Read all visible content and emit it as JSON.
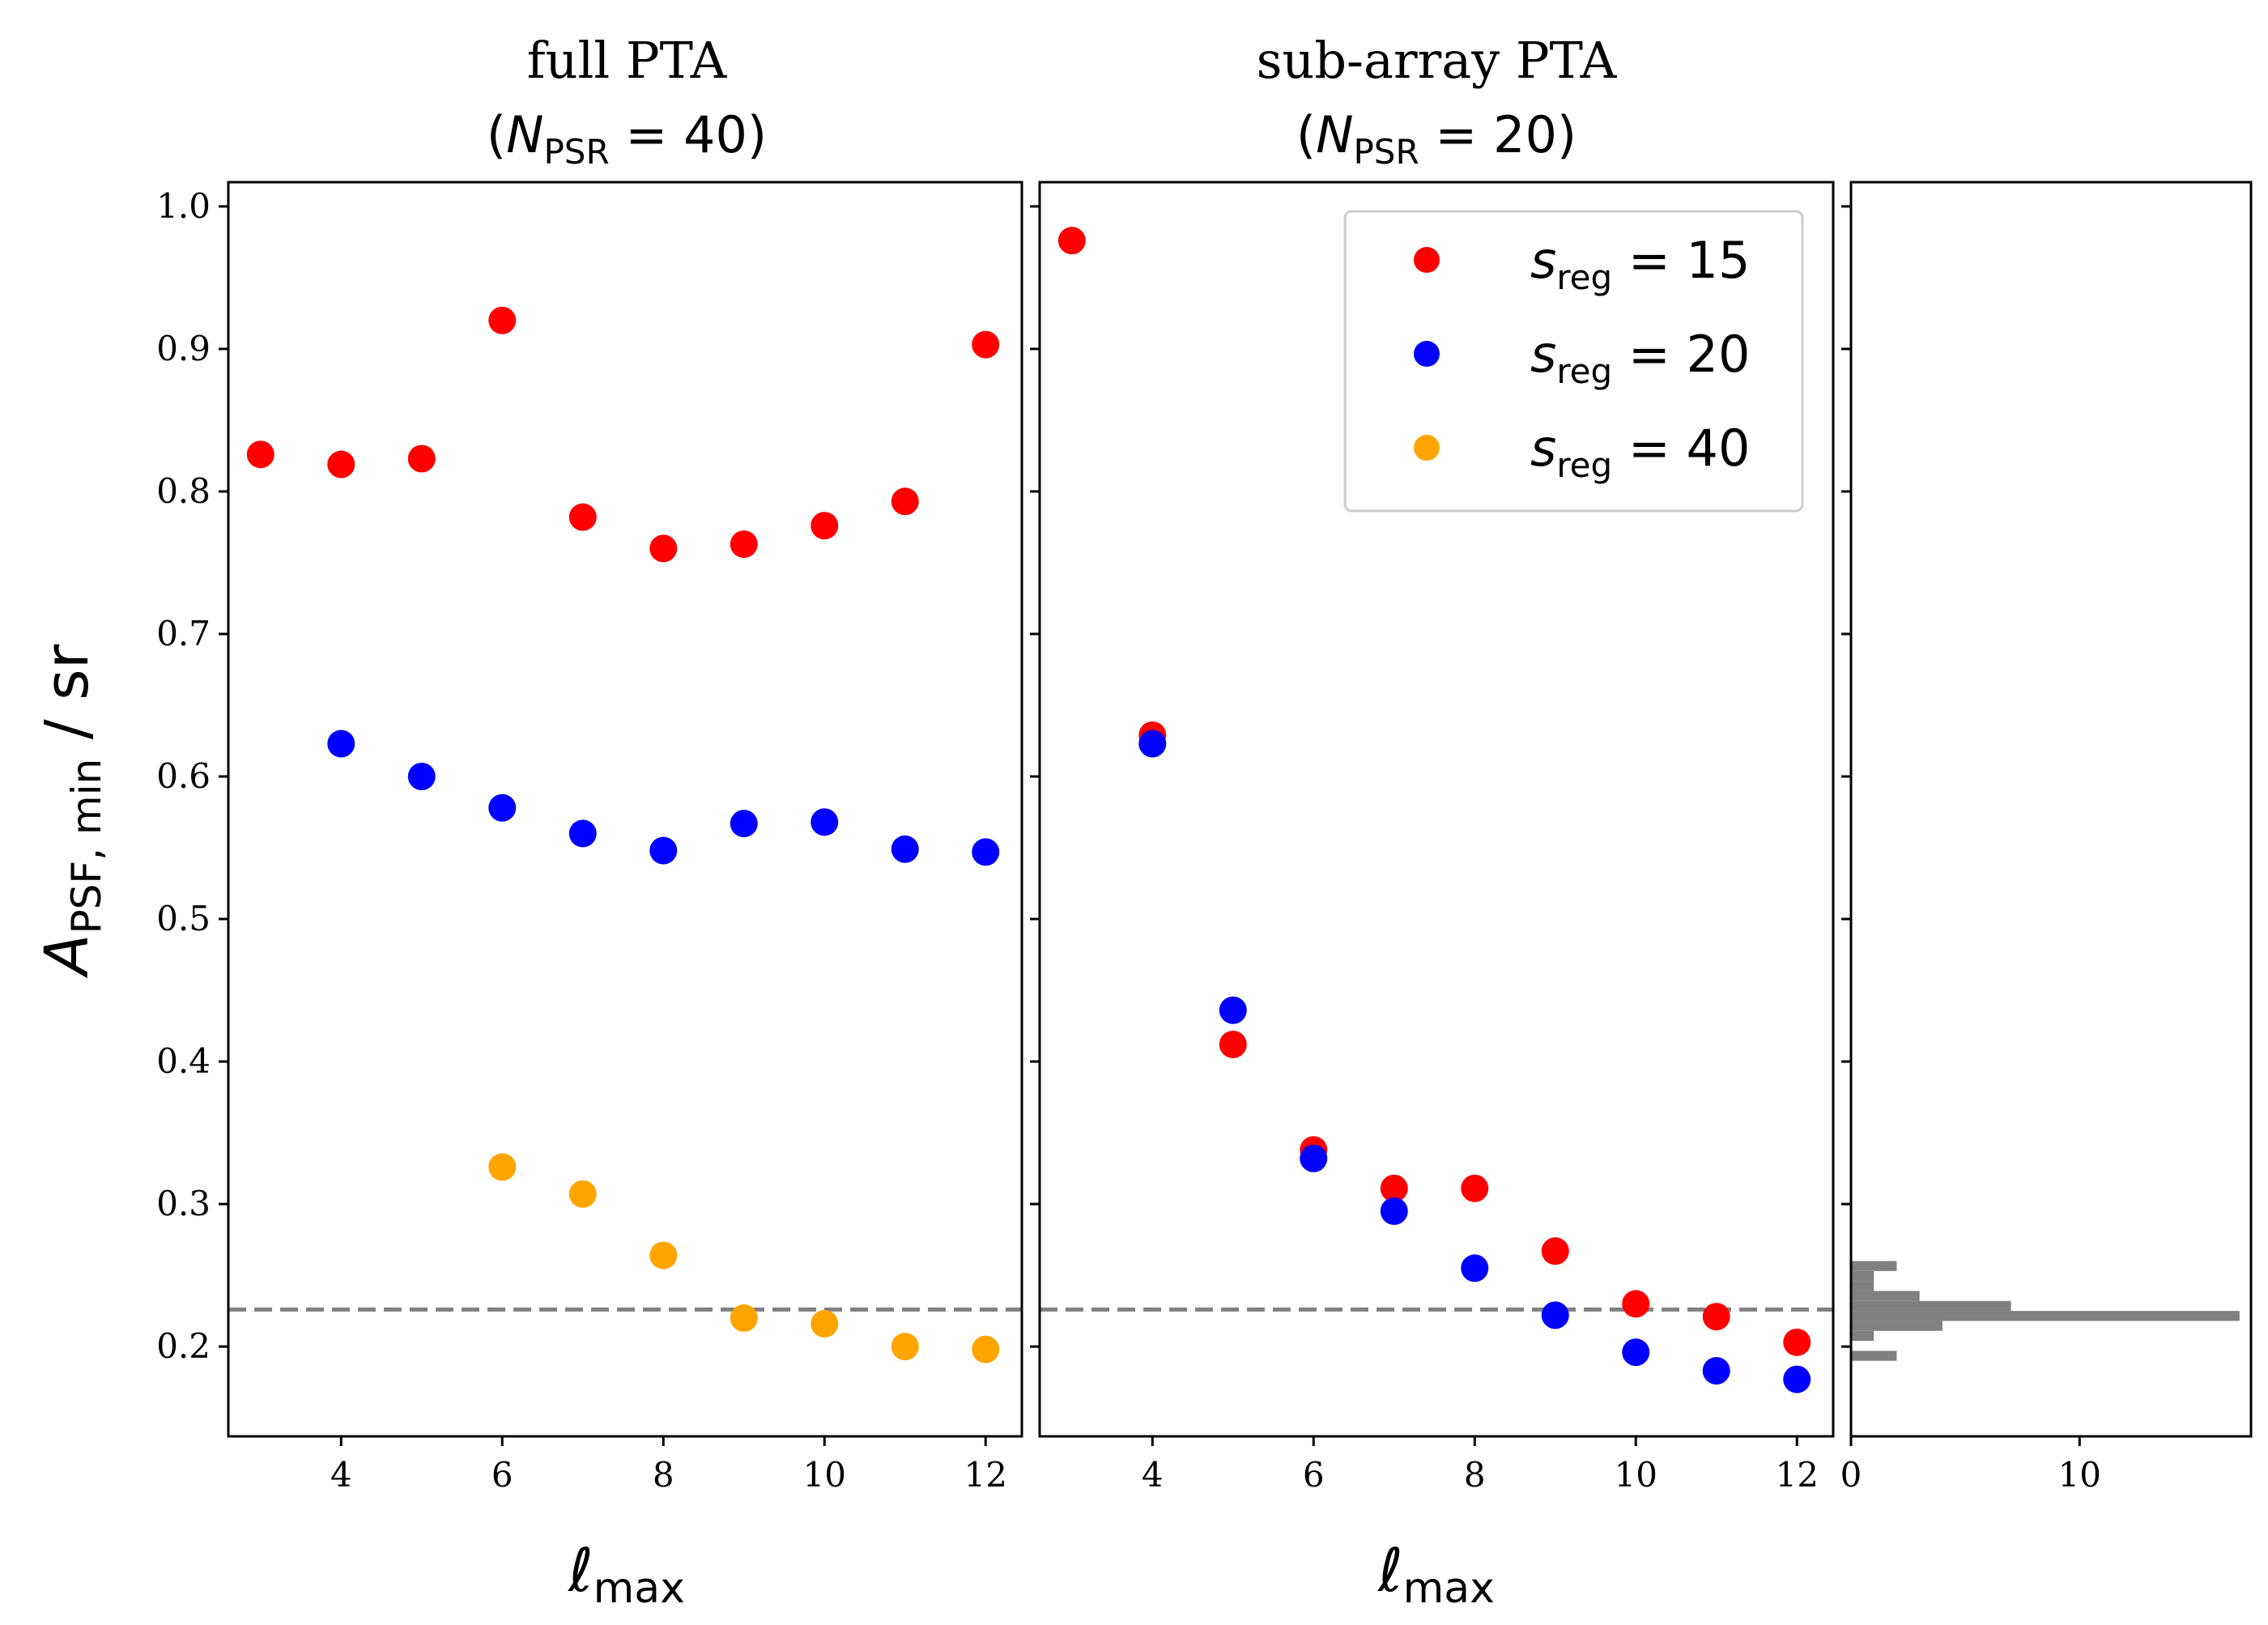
{
  "chart_data": [
    {
      "type": "scatter",
      "panel": "full",
      "title_line1": "full PTA",
      "title_nsym": "N",
      "title_sub": "PSR",
      "title_eq": " = 40",
      "xlabel_base": "ℓ",
      "xlabel_sub": "max",
      "ylabel_base": "A",
      "ylabel_sub": "PSF, min",
      "ylabel_unit": " / sr",
      "xlim": [
        2.6,
        12.45
      ],
      "ylim": [
        0.137,
        1.017
      ],
      "xticks": [
        4,
        6,
        8,
        10,
        12
      ],
      "yticks": [
        0.2,
        0.3,
        0.4,
        0.5,
        0.6,
        0.7,
        0.8,
        0.9,
        1.0
      ],
      "ytick_labels": [
        "0.2",
        "0.3",
        "0.4",
        "0.5",
        "0.6",
        "0.7",
        "0.8",
        "0.9",
        "1.0"
      ],
      "hline": 0.226,
      "series": [
        {
          "name": "s_reg = 15",
          "color": "#ff0000",
          "x": [
            3,
            4,
            5,
            6,
            7,
            8,
            9,
            10,
            11,
            12
          ],
          "y": [
            0.826,
            0.819,
            0.823,
            0.92,
            0.782,
            0.76,
            0.763,
            0.776,
            0.793,
            0.903
          ]
        },
        {
          "name": "s_reg = 20",
          "color": "#0000ff",
          "x": [
            4,
            5,
            6,
            7,
            8,
            9,
            10,
            11,
            12
          ],
          "y": [
            0.623,
            0.6,
            0.578,
            0.56,
            0.548,
            0.567,
            0.568,
            0.549,
            0.547
          ]
        },
        {
          "name": "s_reg = 40",
          "color": "#ffa500",
          "x": [
            6,
            7,
            8,
            9,
            10,
            11,
            12
          ],
          "y": [
            0.326,
            0.307,
            0.264,
            0.22,
            0.216,
            0.2,
            0.198
          ]
        }
      ]
    },
    {
      "type": "scatter",
      "panel": "sub",
      "title_line1": "sub-array PTA",
      "title_nsym": "N",
      "title_sub": "PSR",
      "title_eq": " = 20",
      "xlabel_base": "ℓ",
      "xlabel_sub": "max",
      "xlim": [
        2.6,
        12.45
      ],
      "ylim": [
        0.137,
        1.017
      ],
      "xticks": [
        4,
        6,
        8,
        10,
        12
      ],
      "hline": 0.226,
      "legend": {
        "location": "upper-right",
        "entries": [
          {
            "sym": "s",
            "sub": "reg",
            "eq": " = 15",
            "color": "#ff0000"
          },
          {
            "sym": "s",
            "sub": "reg",
            "eq": " = 20",
            "color": "#0000ff"
          },
          {
            "sym": "s",
            "sub": "reg",
            "eq": " = 40",
            "color": "#ffa500"
          }
        ]
      },
      "series": [
        {
          "name": "s_reg = 15",
          "color": "#ff0000",
          "x": [
            3,
            4,
            5,
            6,
            7,
            8,
            9,
            10,
            11,
            12
          ],
          "y": [
            0.976,
            0.629,
            0.412,
            0.338,
            0.311,
            0.311,
            0.267,
            0.23,
            0.221,
            0.203
          ]
        },
        {
          "name": "s_reg = 20",
          "color": "#0000ff",
          "x": [
            4,
            5,
            6,
            7,
            8,
            9,
            10,
            11,
            12
          ],
          "y": [
            0.623,
            0.436,
            0.332,
            0.295,
            0.255,
            0.222,
            0.196,
            0.183,
            0.177
          ]
        }
      ]
    },
    {
      "type": "histogram",
      "panel": "hist",
      "orientation": "horizontal",
      "color": "#808080",
      "xlim": [
        0,
        17.5
      ],
      "xticks": [
        0,
        10
      ],
      "xtick_labels": [
        "0",
        "10"
      ],
      "ylim": [
        0.137,
        1.017
      ],
      "bin_width": 0.007,
      "bins": [
        {
          "y": 0.19,
          "count": 2
        },
        {
          "y": 0.204,
          "count": 1
        },
        {
          "y": 0.211,
          "count": 4
        },
        {
          "y": 0.218,
          "count": 17
        },
        {
          "y": 0.225,
          "count": 7
        },
        {
          "y": 0.232,
          "count": 3
        },
        {
          "y": 0.239,
          "count": 1
        },
        {
          "y": 0.246,
          "count": 1
        },
        {
          "y": 0.253,
          "count": 2
        }
      ]
    }
  ]
}
